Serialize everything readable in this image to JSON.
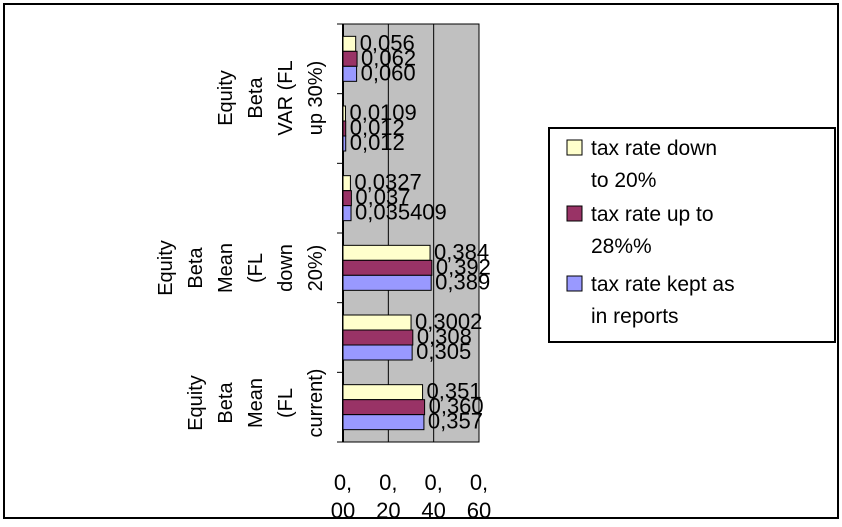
{
  "chart_data": {
    "type": "bar",
    "orientation": "horizontal",
    "categories": [
      "Equity Beta Mean (FL current)",
      "",
      "Equity Beta Mean (FL down 20%)",
      "",
      "Equity Beta VAR (FL up 30%)",
      ""
    ],
    "category_label_lines": [
      [
        "Equity",
        "Beta",
        "Mean",
        "(FL",
        "current)"
      ],
      [],
      [
        "Equity",
        "Beta",
        "Mean",
        "(FL",
        "down",
        "20%)"
      ],
      [],
      [
        "Equity",
        "Beta",
        "VAR (FL",
        "up 30%)"
      ],
      []
    ],
    "series": [
      {
        "name": "tax rate down to 20%",
        "color": "#FFFFCC",
        "values": [
          0.351,
          0.3002,
          0.384,
          0.0327,
          0.0109,
          0.056
        ],
        "labels": [
          "0,351",
          "0,3002",
          "0,384",
          "0,0327",
          "0,0109",
          "0,056"
        ]
      },
      {
        "name": "tax rate up to 28%%",
        "color": "#993366",
        "values": [
          0.36,
          0.308,
          0.392,
          0.037,
          0.012,
          0.062
        ],
        "labels": [
          "0,360",
          "0,308",
          "0,392",
          "0,037",
          "0,012",
          "0,062"
        ]
      },
      {
        "name": "tax rate kept as in reports",
        "color": "#9999FF",
        "values": [
          0.357,
          0.305,
          0.389,
          0.035409,
          0.012,
          0.06
        ],
        "labels": [
          "0,357",
          "0,305",
          "0,389",
          "0,035409",
          "0,012",
          "0,060"
        ]
      }
    ],
    "legend_lines": [
      [
        "tax rate down",
        "to 20%"
      ],
      [
        "tax rate up to",
        "28%%"
      ],
      [
        "tax rate kept as",
        "in reports"
      ]
    ],
    "xlim": [
      0,
      0.6
    ],
    "x_ticks": [
      {
        "value": 0.0,
        "top": "0,",
        "bottom": "00"
      },
      {
        "value": 0.2,
        "top": "0,",
        "bottom": "20"
      },
      {
        "value": 0.4,
        "top": "0,",
        "bottom": "40"
      },
      {
        "value": 0.6,
        "top": "0,",
        "bottom": "60"
      }
    ],
    "plot_background": "#C0C0C0",
    "grid": true,
    "legend_position": "right"
  }
}
